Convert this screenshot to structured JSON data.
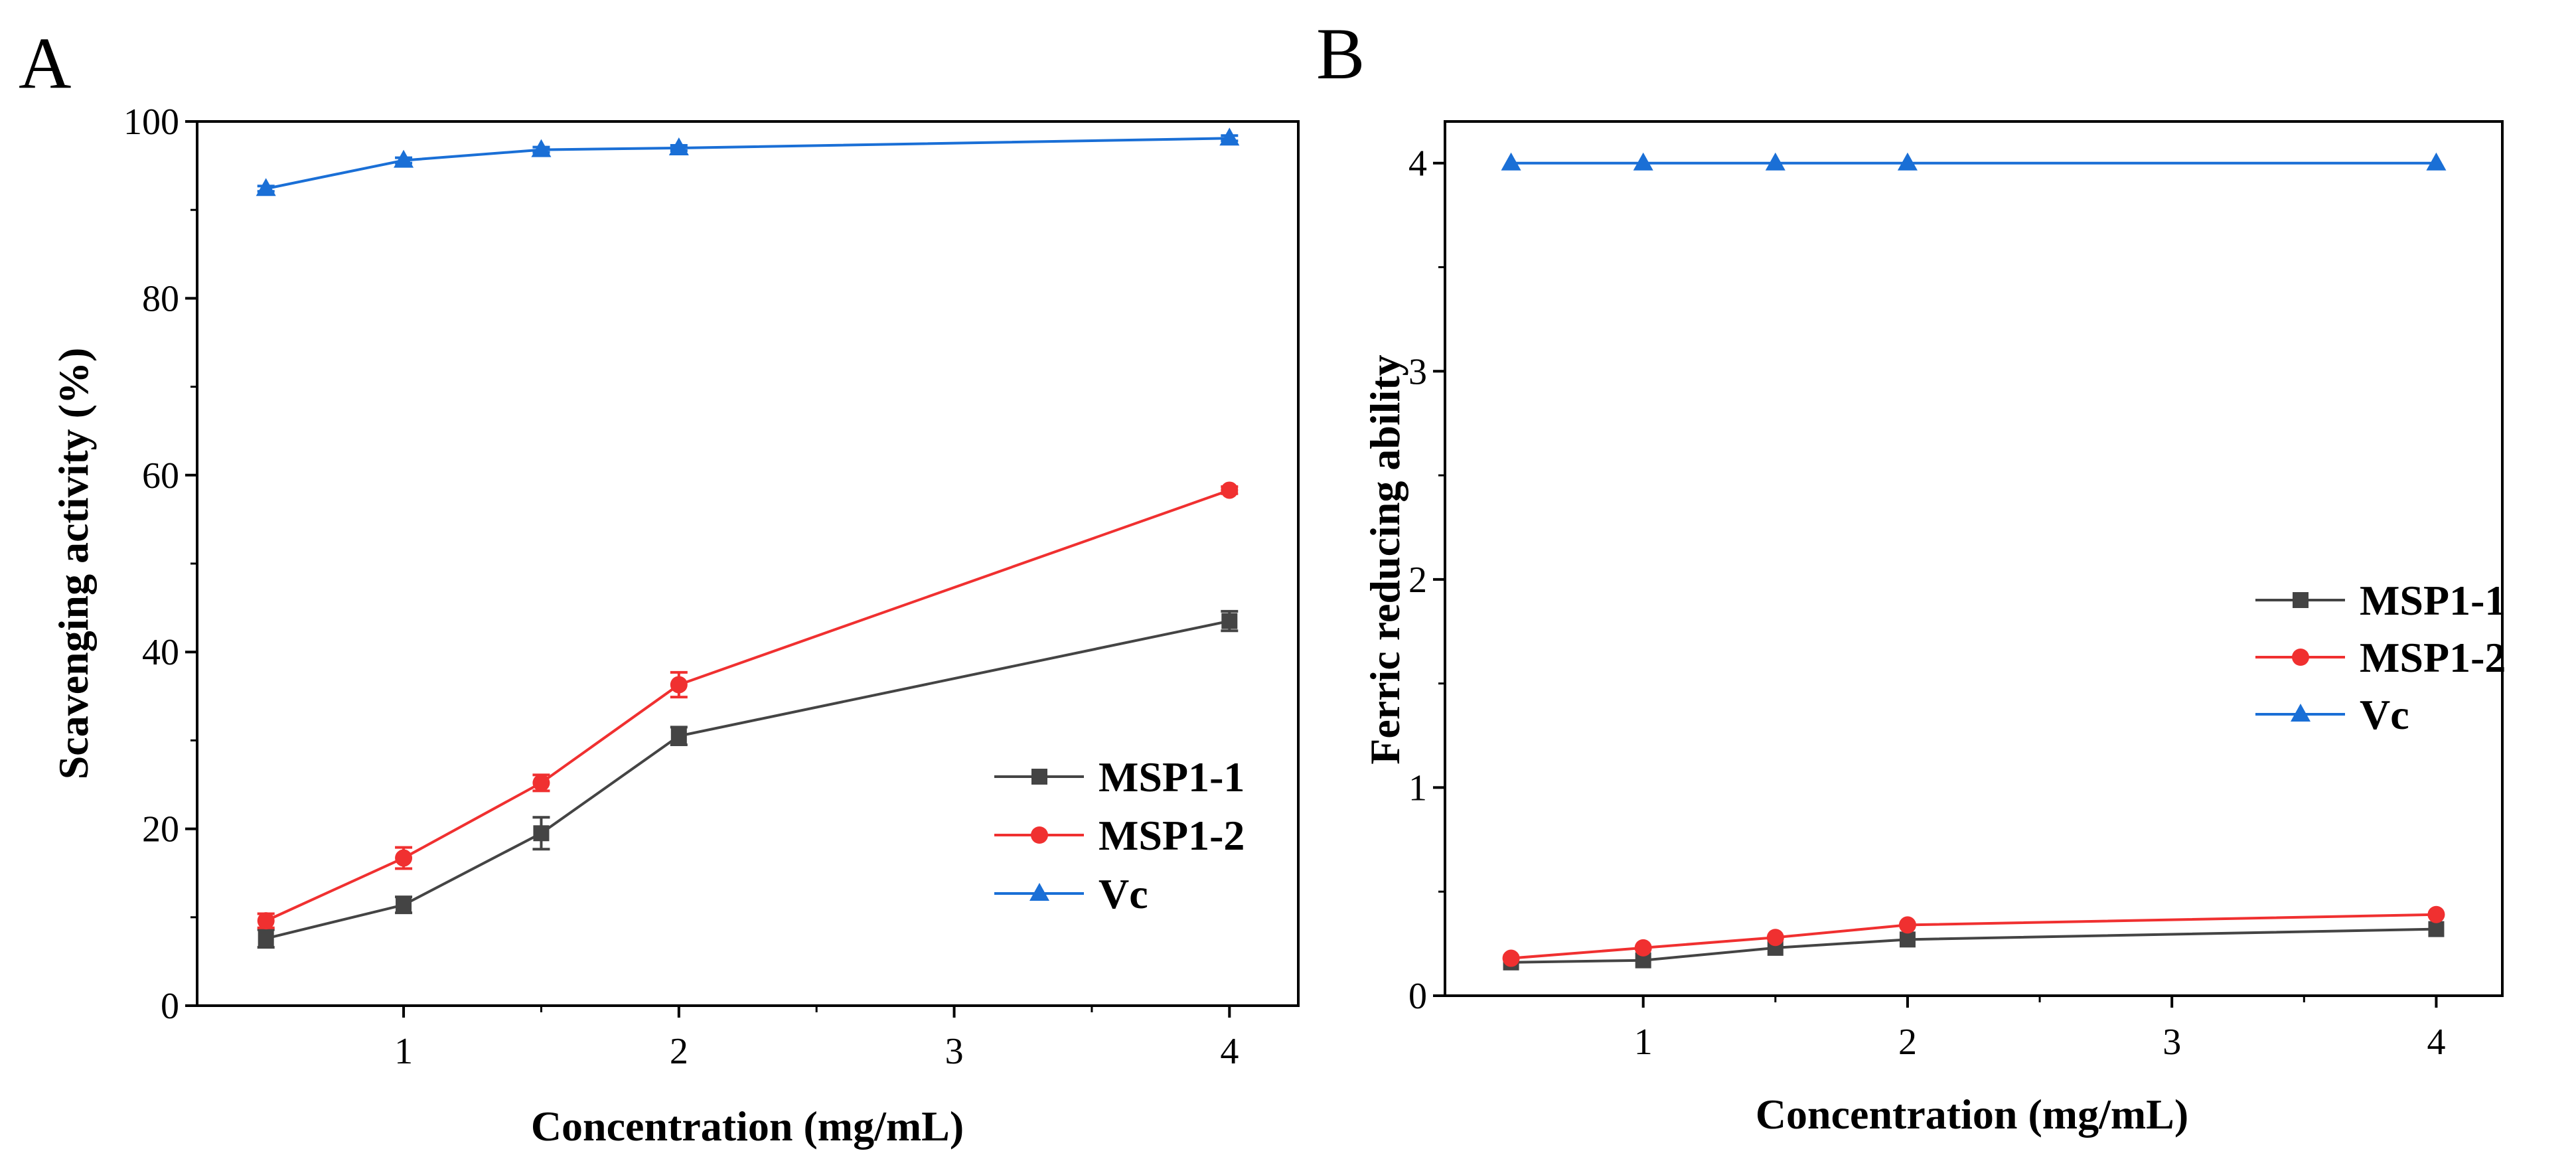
{
  "figure": {
    "panels": [
      "A",
      "B"
    ]
  },
  "colors": {
    "MSP1-1": "#444444",
    "MSP1-2": "#f03030",
    "Vc": "#1a6fd6"
  },
  "chart_data": [
    {
      "panel": "A",
      "type": "line",
      "title": "",
      "xlabel": "Concentration (mg/mL)",
      "ylabel": "Scavenging activity (%)",
      "x": [
        0.5,
        1,
        1.5,
        2,
        4
      ],
      "xlim": [
        0.25,
        4.25
      ],
      "ylim": [
        0,
        100
      ],
      "xticks": [
        1,
        2,
        3,
        4
      ],
      "xtick_labels": [
        "1",
        "2",
        "3",
        "4"
      ],
      "yticks": [
        0,
        20,
        40,
        60,
        80,
        100
      ],
      "ytick_labels": [
        "0",
        "20",
        "40",
        "60",
        "80",
        "100"
      ],
      "legend_position": "lower-right",
      "series": [
        {
          "name": "MSP1-1",
          "marker": "square",
          "values": [
            7.6,
            11.4,
            19.5,
            30.5,
            43.5
          ],
          "errors": [
            1.0,
            0.9,
            1.8,
            1.0,
            1.1
          ]
        },
        {
          "name": "MSP1-2",
          "marker": "circle",
          "values": [
            9.6,
            16.7,
            25.2,
            36.3,
            58.3
          ],
          "errors": [
            0.8,
            1.2,
            0.9,
            1.4,
            0.4
          ]
        },
        {
          "name": "Vc",
          "marker": "triangle",
          "values": [
            92.4,
            95.6,
            96.8,
            97.0,
            98.1
          ],
          "errors": [
            0.3,
            0.3,
            0.3,
            0.3,
            0.3
          ]
        }
      ]
    },
    {
      "panel": "B",
      "type": "line",
      "title": "",
      "xlabel": "Concentration (mg/mL)",
      "ylabel": "Ferric reducing ability",
      "x": [
        0.5,
        1,
        1.5,
        2,
        4
      ],
      "xlim": [
        0.25,
        4.25
      ],
      "ylim": [
        0,
        4.2
      ],
      "xticks": [
        1,
        2,
        3,
        4
      ],
      "xtick_labels": [
        "1",
        "2",
        "3",
        "4"
      ],
      "yticks": [
        0,
        1,
        2,
        3,
        4
      ],
      "ytick_labels": [
        "0",
        "1",
        "2",
        "3",
        "4"
      ],
      "legend_position": "center-right",
      "series": [
        {
          "name": "MSP1-1",
          "marker": "square",
          "values": [
            0.16,
            0.17,
            0.23,
            0.27,
            0.32
          ]
        },
        {
          "name": "MSP1-2",
          "marker": "circle",
          "values": [
            0.18,
            0.23,
            0.28,
            0.34,
            0.39
          ]
        },
        {
          "name": "Vc",
          "marker": "triangle",
          "values": [
            4.0,
            4.0,
            4.0,
            4.0,
            4.0
          ]
        }
      ]
    }
  ]
}
